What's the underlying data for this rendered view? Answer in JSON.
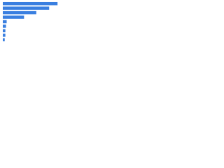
{
  "chart_data": {
    "type": "bar",
    "orientation": "horizontal",
    "categories": [
      null,
      null,
      null,
      null,
      null,
      null,
      null,
      null,
      null
    ],
    "values": [
      85,
      72,
      52,
      33,
      6,
      5,
      4,
      4,
      3
    ],
    "color": "#3a7fe0",
    "xlim": [
      0,
      100
    ]
  }
}
